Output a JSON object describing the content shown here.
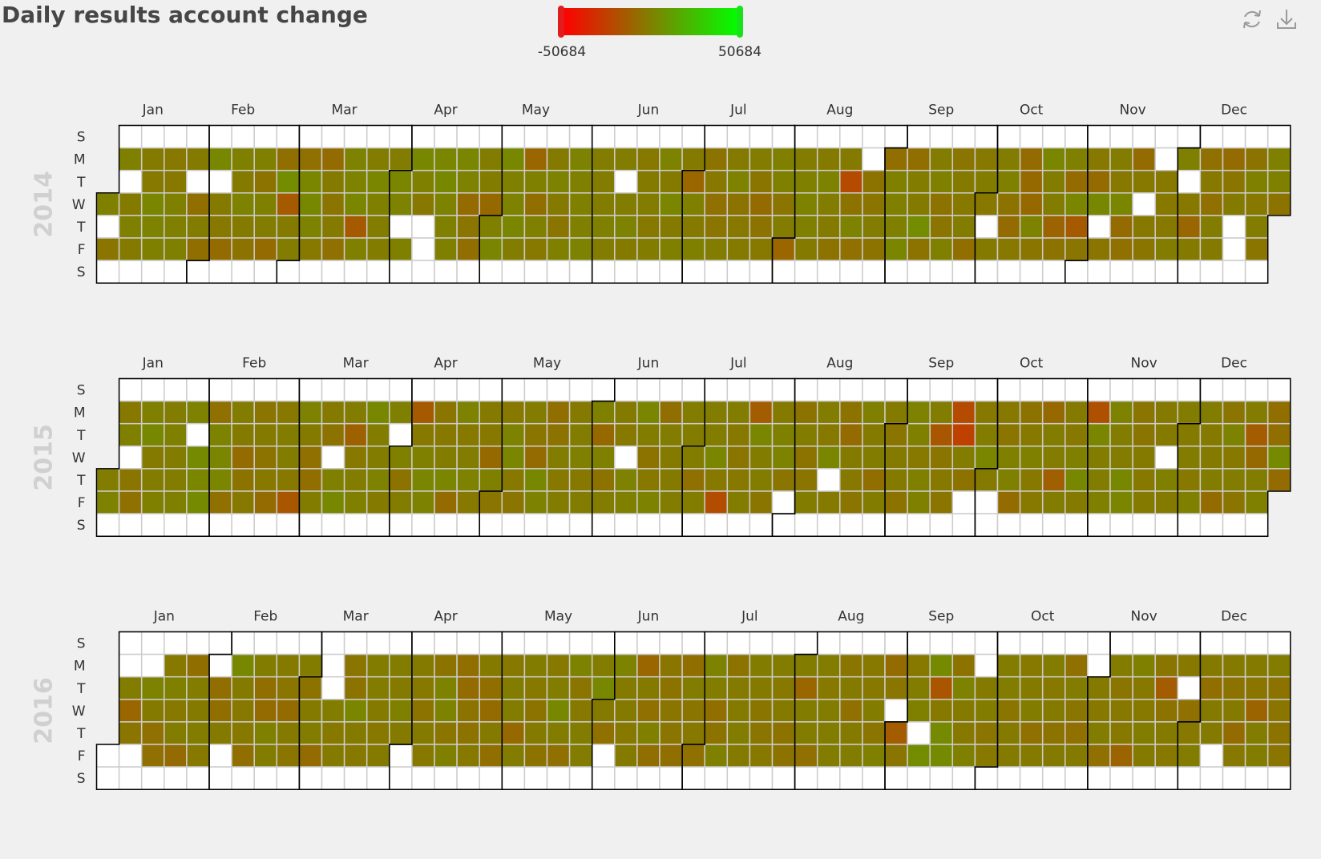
{
  "chart_data": {
    "type": "heatmap",
    "subtype": "calendar",
    "title": "Daily results account change",
    "visual_map": {
      "min": -50684,
      "max": 50684,
      "min_label": "-50684",
      "max_label": "50684",
      "colors": [
        "#ff0000",
        "#00ff00"
      ]
    },
    "day_labels": [
      "S",
      "M",
      "T",
      "W",
      "T",
      "F",
      "S"
    ],
    "month_labels": [
      "Jan",
      "Feb",
      "Mar",
      "Apr",
      "May",
      "Jun",
      "Jul",
      "Aug",
      "Sep",
      "Oct",
      "Nov",
      "Dec"
    ],
    "years": [
      {
        "year": "2014",
        "values": [
          0,
          -4000,
          0,
          -2000,
          0,
          -2000,
          -2000,
          -3000,
          2000,
          1000,
          0,
          -3000,
          -3000,
          0,
          0,
          0,
          -2000,
          -7000,
          -1000,
          -7000,
          3000,
          -2000,
          -3000,
          -8000,
          0,
          -2000,
          1000,
          -2000,
          -5000,
          0,
          -5000,
          0,
          -1000,
          -8000,
          -7000,
          5000,
          -15000,
          -2000,
          -1000,
          -6000,
          2000,
          3000,
          1000,
          -3000,
          -8000,
          -2000,
          -4000,
          -2000,
          -6000,
          1000,
          1000,
          2000,
          -15000,
          0,
          -1000,
          2000,
          0,
          -1000,
          -1000,
          -1000,
          2000,
          1000,
          0,
          3000,
          0,
          -3000,
          2000,
          3000,
          1000,
          0,
          0,
          2000,
          1000,
          -8000,
          -4000,
          -7000,
          -1000,
          -1000,
          -9000,
          0,
          2000,
          3000,
          0,
          1000,
          2000,
          -1000,
          -10000,
          0,
          -7000,
          0,
          -3000,
          -2000,
          1000,
          -2000,
          -4000,
          0,
          1000,
          0,
          0,
          0,
          1000,
          -1000,
          -1000,
          -1000,
          0,
          -1000,
          -1000,
          -1000,
          1000,
          -2000,
          -3000,
          -2000,
          -1000,
          -3000,
          -1000,
          1000,
          -2000,
          2000,
          -2000,
          0,
          -2000,
          -10000,
          0,
          -2000,
          0,
          -5000,
          -3000,
          -6000,
          -4000,
          -1000,
          -2000,
          1000,
          -5000,
          -3000,
          -2000,
          -1000,
          -4000,
          -8000,
          -5000,
          -3000,
          0,
          0,
          -4000,
          -1000,
          -10000,
          -1000,
          0,
          1000,
          0,
          -2000,
          -2000,
          1000,
          -1000,
          -2000,
          -5000,
          -2000,
          -21000,
          -5000,
          1000,
          -6000,
          -5000,
          -4000,
          -1000,
          -5000,
          -7000,
          0,
          0,
          0,
          2000,
          -7000,
          -1000,
          -2000,
          5000,
          -5000,
          -1000,
          0,
          -5000,
          -4000,
          0,
          -4000,
          -2000,
          -3000,
          -1000,
          -7000,
          -3000,
          -1000,
          -3000,
          -2000,
          -1000,
          0,
          -5000,
          -8000,
          -3000,
          -8000,
          -9000,
          -9000,
          1000,
          -4000,
          2000,
          -1000,
          -1000,
          -11000,
          -5000,
          0,
          -8000,
          2000,
          -15000,
          -4000,
          -3000,
          -8000,
          3000,
          -4000,
          -1000,
          -3000,
          2000,
          -8000,
          -6000,
          -8000,
          -3000,
          -3000,
          -4000,
          -3000,
          -3000,
          -3000,
          -1000,
          0,
          -3000,
          -10000,
          -2000,
          -6000,
          -3000,
          -6000,
          -1000,
          -2000,
          -8000,
          -4000,
          -2000,
          -5000,
          0,
          -3000,
          -1000,
          -4000,
          0,
          0,
          -5000,
          -7000,
          -3000,
          -3000,
          -11000,
          -7000,
          1000,
          -1000,
          -8000,
          -4000,
          -1000,
          -10000,
          4000,
          -1000,
          -7000,
          -4000,
          0,
          -10000,
          -6000,
          -13000
        ],
        "blanks": [
          1,
          6,
          27,
          34,
          88,
          92,
          99,
          100,
          160,
          236,
          274,
          277,
          309,
          322,
          327,
          335,
          351,
          352
        ]
      },
      {
        "year": "2015",
        "values": [
          -1000,
          1000,
          -3000,
          0,
          -4000,
          -6000,
          0,
          3000,
          -2000,
          -1000,
          0,
          -1000,
          0,
          -1000,
          -1000,
          0,
          1000,
          4000,
          2000,
          4000,
          -6000,
          1000,
          2000,
          2000,
          -6000,
          -1000,
          -2000,
          -8000,
          -5000,
          -3000,
          -4000,
          -2000,
          -5000,
          -3000,
          -8000,
          -3000,
          -1000,
          -1000,
          -3000,
          -16000,
          1000,
          -2000,
          -6000,
          -7000,
          -1000,
          -2000,
          -5000,
          0,
          3000,
          -1000,
          -12000,
          -3000,
          -1000,
          0,
          3000,
          -1000,
          -1000,
          1000,
          -2000,
          0,
          0,
          -5000,
          -1000,
          -15000,
          -3000,
          0,
          2000,
          1000,
          -4000,
          -3000,
          -1000,
          2000,
          -8000,
          1000,
          -3000,
          -1000,
          1000,
          -3000,
          -2000,
          -3000,
          -9000,
          0,
          -4000,
          -3000,
          1000,
          2000,
          -3000,
          -4000,
          -1000,
          -4000,
          -8000,
          3000,
          1000,
          -7000,
          -5000,
          -1000,
          -3000,
          -1000,
          -2000,
          -1000,
          0,
          -3000,
          -1000,
          0,
          -9000,
          0,
          -5000,
          -1000,
          -2000,
          -3000,
          1000,
          0,
          2000,
          -1000,
          -5000,
          -3000,
          1000,
          -7000,
          -1000,
          -2000,
          -2000,
          -1000,
          -1000,
          -1000,
          -1000,
          -6000,
          -1000,
          -1000,
          -1000,
          2000,
          -3000,
          -20000,
          -1000,
          -3000,
          -4000,
          -3000,
          -1000,
          -14000,
          2000,
          -1000,
          -1000,
          -4000,
          -2000,
          0,
          1000,
          -4000,
          -5000,
          -1000,
          -5000,
          -4000,
          -1000,
          -1000,
          -3000,
          2000,
          -2000,
          -5000,
          -8000,
          -2000,
          -3000,
          -4000,
          0,
          -2000,
          -1000,
          -7000,
          -1000,
          -2000,
          -4000,
          -2000,
          -2000,
          -5000,
          1000,
          0,
          -3000,
          0,
          0,
          -1000,
          -16000,
          -4000,
          -3000,
          -4000,
          -21000,
          -25000,
          -1000,
          -5000,
          -3000,
          -1000,
          2000,
          -2000,
          -3000,
          -4000,
          0,
          0,
          -8000,
          -5000,
          -3000,
          0,
          -3000,
          -3000,
          -9000,
          -1000,
          -1000,
          -13000,
          -1000,
          -2000,
          -3000,
          0,
          3000,
          -2000,
          -19000,
          2000,
          -1000,
          -1000,
          0,
          1000,
          -1000,
          -1000,
          3000,
          2000,
          -4000,
          -4000,
          -2000,
          -3000,
          -2000,
          -2000,
          -2000,
          0,
          -2000,
          -1000,
          -2000,
          -1000,
          -3000,
          0,
          -1000,
          -2000,
          -2000,
          -1000,
          -8000,
          -4000,
          1000,
          -3000,
          -1000,
          -4000,
          -1000,
          -14000,
          -9000,
          -1000,
          0,
          -7000,
          -7000,
          4000,
          -8000,
          -4000,
          -4000,
          -8000,
          -4000,
          -10000,
          -2000,
          -3000,
          -4000,
          -7000,
          -7000,
          -3000,
          -6000,
          -1000,
          -10000,
          -1000,
          -2000,
          -2000,
          -2000,
          -1000,
          -5000,
          -4000,
          -3000,
          -2000,
          -6000,
          -1000,
          -3000
        ],
        "blanks": [
          2,
          6,
          26,
          31,
          69,
          89,
          94,
          160,
          211,
          224,
          267,
          274,
          328,
          359
        ]
      },
      {
        "year": "2016",
        "values": [
          -1000,
          -10000,
          -4000,
          1000,
          -2000,
          -6000,
          -6000,
          -3000,
          0,
          -3000,
          -1000,
          -8000,
          -7000,
          -1000,
          -2000,
          -1000,
          -3000,
          -7000,
          -7000,
          -2000,
          3000,
          -2000,
          -3000,
          -3000,
          -7000,
          -1000,
          -7000,
          -8000,
          0,
          -1000,
          -2000,
          -4000,
          -8000,
          -2000,
          -4000,
          -1000,
          -5000,
          -2000,
          -1000,
          -8000,
          -1000,
          -3000,
          -2000,
          -4000,
          -5000,
          2000,
          -2000,
          -3000,
          -1000,
          -1000,
          -2000,
          -3000,
          -2000,
          -1000,
          -2000,
          0,
          -2000,
          -2000,
          -3000,
          -5000,
          -2000,
          -3000,
          -5000,
          1000,
          1000,
          -4000,
          0,
          -7000,
          -8000,
          -5000,
          -5000,
          -3000,
          -2000,
          -7000,
          -8000,
          -2000,
          -7000,
          -3000,
          -1000,
          -1000,
          -9000,
          -1000,
          -1000,
          -3000,
          -5000,
          -2000,
          -5000,
          -3000,
          -1000,
          3000,
          -1000,
          -6000,
          1000,
          -4000,
          -3000,
          -1000,
          -1000,
          -1000,
          3000,
          -2000,
          -6000,
          1000,
          -2000,
          -2000,
          -3000,
          -2000,
          -10000,
          -2000,
          -6000,
          0,
          -7000,
          -4000,
          -5000,
          -4000,
          -4000,
          -7000,
          -7000,
          -1000,
          -4000,
          -3000,
          -6000,
          1000,
          -1000,
          -7000,
          -5000,
          0,
          -5000,
          -2000,
          -2000,
          -1000,
          -2000,
          -1000,
          -2000,
          -4000,
          -4000,
          -3000,
          -1000,
          -3000,
          -2000,
          -5000,
          -5000,
          -1000,
          -10000,
          -1000,
          -1000,
          -6000,
          -1000,
          -3000,
          -1000,
          -1000,
          -1000,
          -4000,
          -2000,
          -6000,
          -2000,
          -1000,
          -3000,
          -3000,
          -1000,
          -4000,
          0,
          -8000,
          -4000,
          -14000,
          -4000,
          -3000,
          -1000,
          0,
          5000,
          4000,
          -17000,
          -3000,
          4000,
          4000,
          -5000,
          1000,
          -2000,
          -3000,
          0,
          -2000,
          -1000,
          -4000,
          -3000,
          -1000,
          -1000,
          -4000,
          -2000,
          -2000,
          -3000,
          -2000,
          -1000,
          -6000,
          -2000,
          -1000,
          -3000,
          -2000,
          -5000,
          -2000,
          -6000,
          -1000,
          -4000,
          -6000,
          -2000,
          -2000,
          -3000,
          -1000,
          -6000,
          -1000,
          -4000,
          -3000,
          -3000,
          -11000,
          0,
          -3000,
          -3000,
          -1000,
          -2000,
          -4000,
          -14000,
          -5000,
          -2000,
          -3000,
          -3000,
          -6000,
          -3000,
          -1000,
          -2000,
          -7000,
          -2000,
          -2000,
          -2000,
          -5000,
          -2000,
          -8000,
          -3000,
          -2000,
          -4000,
          -11000,
          -1000,
          -1000,
          -1000,
          -5000,
          -4000,
          -5000,
          -4000,
          -4000,
          -4000,
          -6000,
          -2000,
          -4000,
          -2000,
          -4000,
          -5000,
          -1000,
          -2000,
          -1000,
          -2000,
          -4000,
          -8000,
          -3000,
          -2000,
          -1000,
          -5000,
          -2000,
          -2000,
          -2000,
          -8000,
          -5000,
          2000,
          -4000,
          -2000,
          -1000,
          -4000,
          -8000,
          -4000,
          -3000,
          -2000,
          -1000,
          -3000,
          -1000,
          -6000,
          -3000,
          -3000,
          -3000,
          -7000,
          -2000,
          -5000,
          -2000,
          -2000,
          -7000,
          0,
          -1000,
          2000,
          -3000,
          -4000,
          -4000,
          -4000,
          -3000,
          -5000,
          -10000,
          -6000,
          -4000,
          -1000,
          -2000
        ],
        "blanks": [
          0,
          3,
          7,
          10,
          31,
          35,
          64,
          66,
          67,
          91,
          120,
          121,
          154,
          155,
          212,
          243,
          251,
          269,
          296,
          304,
          333,
          343,
          358,
          365
        ]
      }
    ]
  }
}
